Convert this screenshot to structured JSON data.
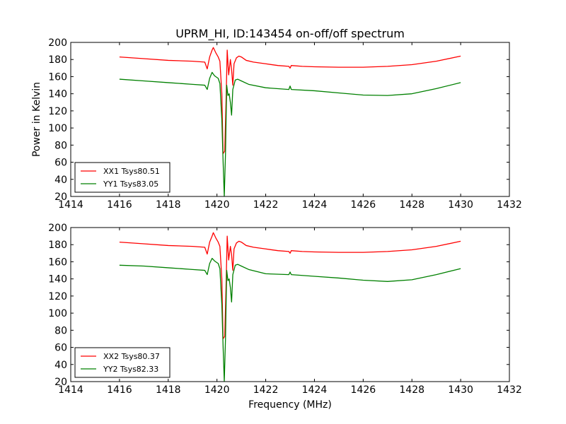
{
  "figure": {
    "title": "UPRM_HI, ID:143454 on-off/off spectrum",
    "xlabel": "Frequency (MHz)",
    "ylabel": "Power in Kelvin"
  },
  "chart_data": [
    {
      "type": "line",
      "title": "UPRM_HI, ID:143454 on-off/off spectrum",
      "xlabel": "",
      "ylabel": "Power in Kelvin",
      "xlim": [
        1414,
        1432
      ],
      "ylim": [
        20,
        200
      ],
      "xticks": [
        1414,
        1416,
        1418,
        1420,
        1422,
        1424,
        1426,
        1428,
        1430,
        1432
      ],
      "yticks": [
        20,
        40,
        60,
        80,
        100,
        120,
        140,
        160,
        180,
        200
      ],
      "legend_position": "lower-left",
      "series": [
        {
          "name": "XX1 Tsys80.51",
          "color": "#ff0000",
          "points": [
            [
              1416,
              183
            ],
            [
              1417,
              181
            ],
            [
              1418,
              179
            ],
            [
              1419,
              178
            ],
            [
              1419.5,
              177
            ],
            [
              1419.6,
              169
            ],
            [
              1419.7,
              183
            ],
            [
              1419.8,
              191
            ],
            [
              1419.85,
              194
            ],
            [
              1419.95,
              188
            ],
            [
              1420.05,
              183
            ],
            [
              1420.12,
              178
            ],
            [
              1420.2,
              140
            ],
            [
              1420.25,
              70
            ],
            [
              1420.32,
              73
            ],
            [
              1420.38,
              140
            ],
            [
              1420.42,
              191
            ],
            [
              1420.48,
              162
            ],
            [
              1420.55,
              180
            ],
            [
              1420.6,
              168
            ],
            [
              1420.65,
              150
            ],
            [
              1420.7,
              175
            ],
            [
              1420.8,
              182
            ],
            [
              1420.9,
              184
            ],
            [
              1421.0,
              183
            ],
            [
              1421.2,
              179
            ],
            [
              1421.5,
              177
            ],
            [
              1422,
              175
            ],
            [
              1422.5,
              173
            ],
            [
              1422.95,
              172
            ],
            [
              1423.0,
              170
            ],
            [
              1423.05,
              173
            ],
            [
              1423.5,
              172
            ],
            [
              1424,
              171.5
            ],
            [
              1425,
              171
            ],
            [
              1426,
              171
            ],
            [
              1427,
              172
            ],
            [
              1428,
              174
            ],
            [
              1429,
              178
            ],
            [
              1430,
              184
            ]
          ]
        },
        {
          "name": "YY1 Tsys83.05",
          "color": "#008000",
          "points": [
            [
              1416,
              157
            ],
            [
              1417,
              155
            ],
            [
              1418,
              153
            ],
            [
              1419,
              151
            ],
            [
              1419.5,
              150
            ],
            [
              1419.6,
              145
            ],
            [
              1419.7,
              158
            ],
            [
              1419.8,
              165
            ],
            [
              1419.9,
              161
            ],
            [
              1420.05,
              158
            ],
            [
              1420.12,
              152
            ],
            [
              1420.2,
              110
            ],
            [
              1420.25,
              62
            ],
            [
              1420.3,
              20
            ],
            [
              1420.35,
              70
            ],
            [
              1420.4,
              150
            ],
            [
              1420.45,
              138
            ],
            [
              1420.5,
              140
            ],
            [
              1420.55,
              130
            ],
            [
              1420.6,
              115
            ],
            [
              1420.65,
              145
            ],
            [
              1420.75,
              156
            ],
            [
              1420.85,
              157
            ],
            [
              1421.0,
              155
            ],
            [
              1421.3,
              151
            ],
            [
              1422,
              147
            ],
            [
              1422.95,
              145
            ],
            [
              1423.0,
              149
            ],
            [
              1423.05,
              145
            ],
            [
              1424,
              143.5
            ],
            [
              1425,
              141
            ],
            [
              1426,
              138.5
            ],
            [
              1427,
              138
            ],
            [
              1428,
              140
            ],
            [
              1429,
              146
            ],
            [
              1430,
              153
            ]
          ]
        }
      ]
    },
    {
      "type": "line",
      "title": "",
      "xlabel": "Frequency (MHz)",
      "ylabel": "",
      "xlim": [
        1414,
        1432
      ],
      "ylim": [
        20,
        200
      ],
      "xticks": [
        1414,
        1416,
        1418,
        1420,
        1422,
        1424,
        1426,
        1428,
        1430,
        1432
      ],
      "yticks": [
        20,
        40,
        60,
        80,
        100,
        120,
        140,
        160,
        180,
        200
      ],
      "legend_position": "lower-left",
      "series": [
        {
          "name": "XX2 Tsys80.37",
          "color": "#ff0000",
          "points": [
            [
              1416,
              183
            ],
            [
              1417,
              181
            ],
            [
              1418,
              179
            ],
            [
              1419,
              178
            ],
            [
              1419.5,
              177
            ],
            [
              1419.6,
              169
            ],
            [
              1419.7,
              183
            ],
            [
              1419.8,
              190
            ],
            [
              1419.85,
              194
            ],
            [
              1419.95,
              188
            ],
            [
              1420.05,
              183
            ],
            [
              1420.12,
              178
            ],
            [
              1420.2,
              140
            ],
            [
              1420.25,
              70
            ],
            [
              1420.32,
              73
            ],
            [
              1420.38,
              140
            ],
            [
              1420.42,
              190
            ],
            [
              1420.48,
              162
            ],
            [
              1420.55,
              178
            ],
            [
              1420.6,
              168
            ],
            [
              1420.65,
              150
            ],
            [
              1420.7,
              175
            ],
            [
              1420.8,
              182
            ],
            [
              1420.9,
              184
            ],
            [
              1421.0,
              183
            ],
            [
              1421.2,
              179
            ],
            [
              1421.5,
              177
            ],
            [
              1422,
              175
            ],
            [
              1422.5,
              173
            ],
            [
              1422.95,
              172
            ],
            [
              1423.0,
              170
            ],
            [
              1423.05,
              173
            ],
            [
              1423.5,
              172
            ],
            [
              1424,
              171.5
            ],
            [
              1425,
              171
            ],
            [
              1426,
              171
            ],
            [
              1427,
              172
            ],
            [
              1428,
              174
            ],
            [
              1429,
              178
            ],
            [
              1430,
              184
            ]
          ]
        },
        {
          "name": "YY2 Tsys82.33",
          "color": "#008000",
          "points": [
            [
              1416,
              156
            ],
            [
              1417,
              155
            ],
            [
              1418,
              153
            ],
            [
              1419,
              151
            ],
            [
              1419.5,
              150
            ],
            [
              1419.6,
              145
            ],
            [
              1419.7,
              158
            ],
            [
              1419.8,
              164
            ],
            [
              1419.9,
              161
            ],
            [
              1420.05,
              158
            ],
            [
              1420.12,
              152
            ],
            [
              1420.2,
              110
            ],
            [
              1420.25,
              62
            ],
            [
              1420.3,
              20
            ],
            [
              1420.35,
              70
            ],
            [
              1420.4,
              150
            ],
            [
              1420.45,
              138
            ],
            [
              1420.5,
              140
            ],
            [
              1420.55,
              130
            ],
            [
              1420.6,
              113
            ],
            [
              1420.65,
              145
            ],
            [
              1420.75,
              156
            ],
            [
              1420.85,
              157
            ],
            [
              1421.0,
              155
            ],
            [
              1421.3,
              151
            ],
            [
              1422,
              146
            ],
            [
              1422.95,
              145
            ],
            [
              1423.0,
              148
            ],
            [
              1423.05,
              145
            ],
            [
              1424,
              143
            ],
            [
              1425,
              141
            ],
            [
              1426,
              138.5
            ],
            [
              1427,
              137
            ],
            [
              1428,
              139
            ],
            [
              1429,
              145
            ],
            [
              1430,
              152
            ]
          ]
        }
      ]
    }
  ]
}
